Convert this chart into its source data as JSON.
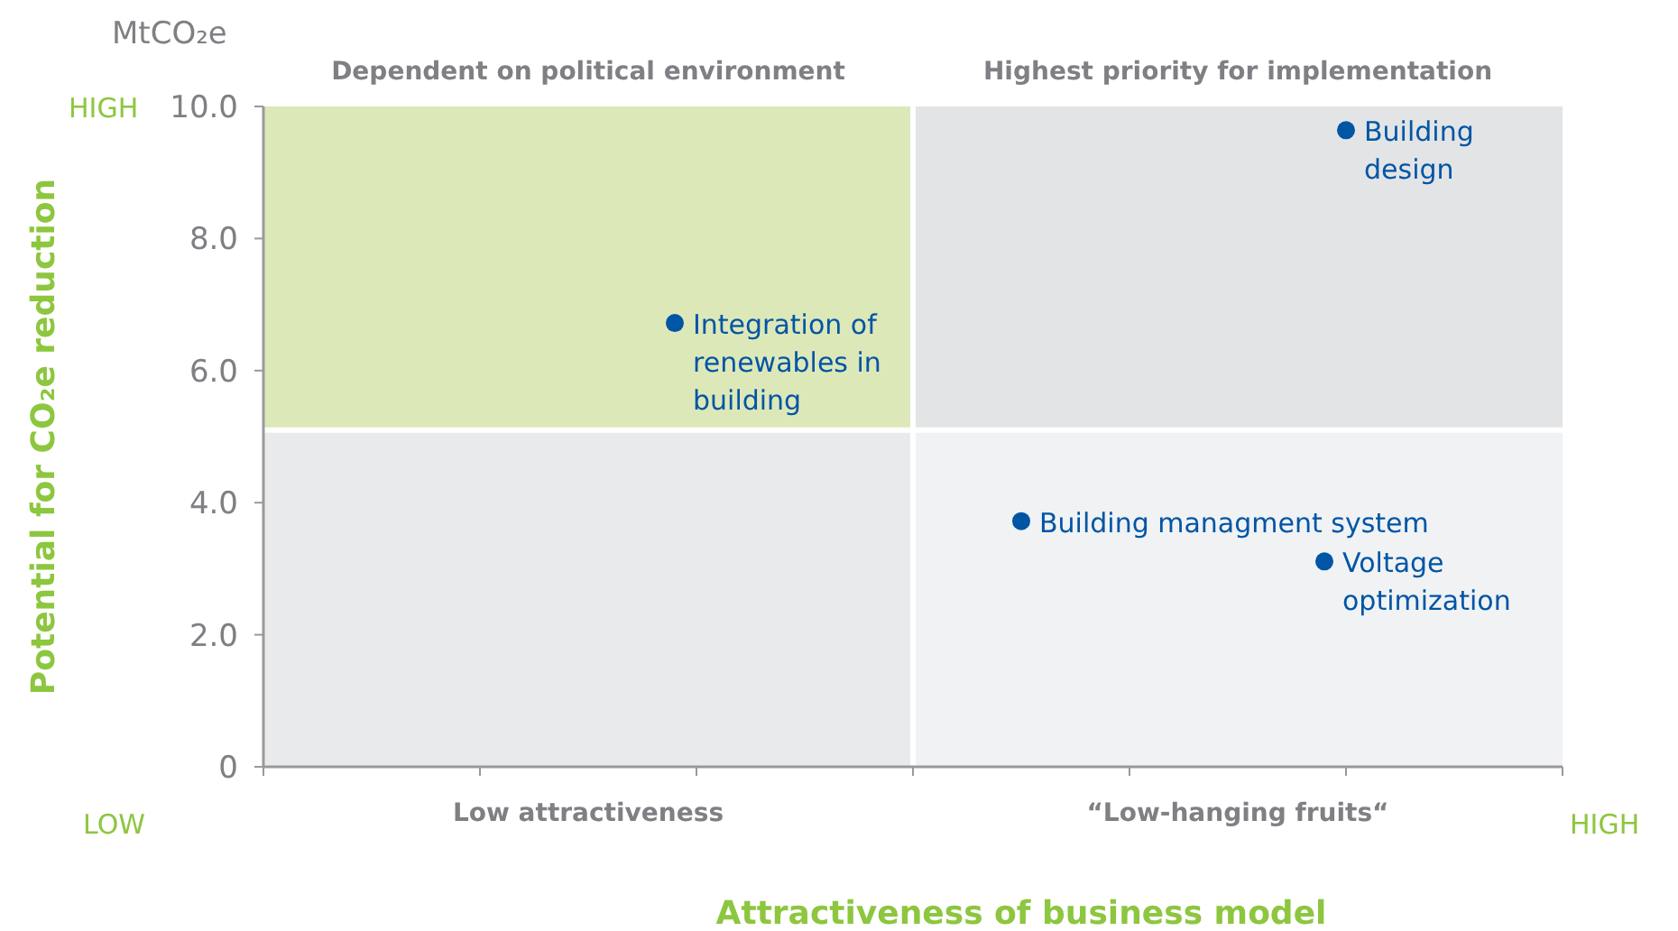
{
  "chart_data": {
    "type": "scatter",
    "xlabel": "Attractiveness of business model",
    "ylabel": "Potential for CO₂e reduction",
    "categories": [
      null,
      null,
      null,
      null,
      null,
      null,
      null,
      null,
      null,
      null,
      null,
      null,
      null,
      null,
      null,
      null,
      null,
      null,
      null,
      null,
      null,
      null,
      null,
      null,
      null,
      null,
      null,
      null,
      null,
      null,
      null,
      null,
      null,
      null,
      null,
      null,
      null,
      null,
      null,
      null,
      null,
      null,
      null,
      null,
      null,
      null,
      null,
      null,
      null,
      null,
      null,
      null,
      null,
      null,
      null,
      null,
      null,
      null,
      null,
      null,
      null
    ],
    "ylim": [
      0,
      10
    ],
    "yticks": [
      0,
      {
        "value": 2,
        "label": "2.0"
      },
      {
        "value": 4,
        "label": "4.0"
      },
      {
        "value": 6,
        "label": "6.0"
      },
      {
        "value": 8,
        "label": "8.0"
      },
      {
        "value": 10,
        "label": "10.0"
      }
    ],
    "series": [
      {
        "color": "#0055a4",
        "values": [
          null,
          null,
          null,
          null,
          null,
          null,
          null,
          null,
          null,
          null,
          null,
          null,
          null,
          null,
          null,
          null,
          null,
          null,
          null,
          6.72,
          null,
          null,
          null,
          null,
          null,
          null,
          null,
          null,
          null,
          null,
          null,
          null,
          null,
          null,
          null,
          3.72,
          null,
          null,
          null,
          null,
          null,
          null,
          null,
          null,
          null,
          null,
          null,
          null,
          null,
          3.11,
          9.64,
          null,
          null,
          null,
          null,
          null,
          null,
          null,
          null,
          null,
          null
        ]
      }
    ],
    "marker": "circle",
    "grid": false,
    "ref_lines": [
      {
        "axis": "y",
        "value": 5.1,
        "color": "#ffffff"
      }
    ],
    "bands": [
      {
        "axis": "y",
        "from": 5.1,
        "to": 10,
        "color": "#dde8b9"
      },
      {
        "axis": "y",
        "from": 5.1,
        "to": 10,
        "color": "#e3e4e6"
      },
      {
        "axis": "y",
        "from": 0,
        "to": 5.1,
        "color": "#e9eaec"
      },
      {
        "axis": "y",
        "from": 0,
        "to": 5.1,
        "color": "#f0f2f4"
      }
    ],
    "annotations": [
      "MtCO₂e",
      "Dependent on political environment",
      "Highest priority for implementation",
      "Low attractiveness",
      "“Low-hanging fruits“",
      "HIGH",
      "LOW",
      "HIGH",
      "Integration of\nrenewables in\nbuilding",
      "Building managment system",
      "Voltage\noptimization",
      "Building\ndesign"
    ]
  }
}
